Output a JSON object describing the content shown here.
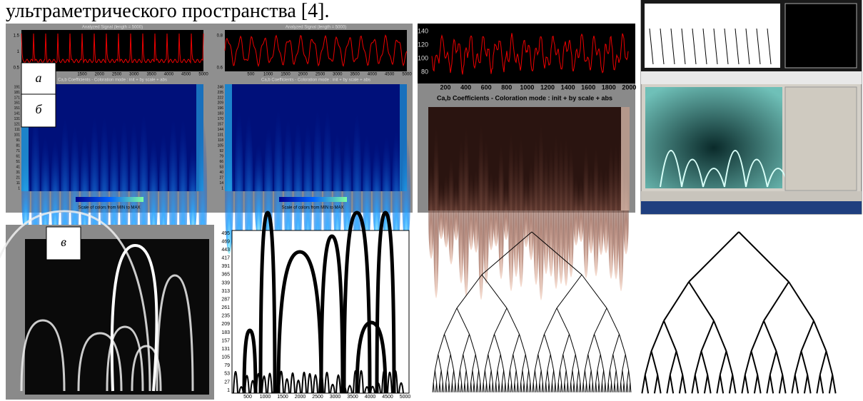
{
  "header": {
    "text": "ультраметрического пространства [4]."
  },
  "labels": {
    "a": "а",
    "b": "б",
    "v": "в"
  },
  "panels": [
    {
      "title": "Analyzed Signal (length = 5000)",
      "map_title": "Ca,b Coefficients - Coloration mode : init + by scale + abs",
      "colorbar": "Scale of colors from MIN to MAX",
      "signal_yticks": [
        "1.5",
        "1",
        "0.5"
      ],
      "xticks": [
        "1500",
        "2000",
        "2500",
        "3000",
        "3500",
        "4000",
        "4500",
        "5000"
      ],
      "map_yticks": [
        "191",
        "181",
        "171",
        "161",
        "151",
        "141",
        "131",
        "121",
        "111",
        "101",
        "91",
        "81",
        "71",
        "61",
        "51",
        "41",
        "31",
        "21",
        "11",
        "1"
      ]
    },
    {
      "title": "Analyzed Signal (length = 5000)",
      "map_title": "Ca,b Coefficients - Coloration mode : init + by scale + abs",
      "colorbar": "Scale of colors from MIN to MAX",
      "signal_yticks": [
        "0.8",
        "0.6"
      ],
      "xticks": [
        "500",
        "1000",
        "1500",
        "2000",
        "2500",
        "3000",
        "3500",
        "4000",
        "4500",
        "5000"
      ],
      "map_yticks": [
        "246",
        "235",
        "222",
        "209",
        "196",
        "183",
        "170",
        "157",
        "144",
        "131",
        "118",
        "105",
        "92",
        "79",
        "66",
        "53",
        "40",
        "27",
        "14",
        "1"
      ]
    },
    {
      "map_title": "Ca,b Coefficients  - Coloration mode : init + by scale + abs",
      "signal_yticks": [
        "140",
        "120",
        "100",
        "80"
      ],
      "xticks": [
        "200",
        "400",
        "600",
        "800",
        "1000",
        "1200",
        "1400",
        "1600",
        "1800",
        "2000"
      ]
    }
  ],
  "scalogram": {
    "yticks": [
      "495",
      "469",
      "443",
      "417",
      "391",
      "365",
      "339",
      "313",
      "287",
      "261",
      "235",
      "209",
      "183",
      "157",
      "131",
      "105",
      "79",
      "53",
      "27",
      "1"
    ],
    "xticks": [
      "500",
      "1000",
      "1500",
      "2000",
      "2500",
      "3000",
      "3500",
      "4000",
      "4500",
      "5000"
    ]
  }
}
